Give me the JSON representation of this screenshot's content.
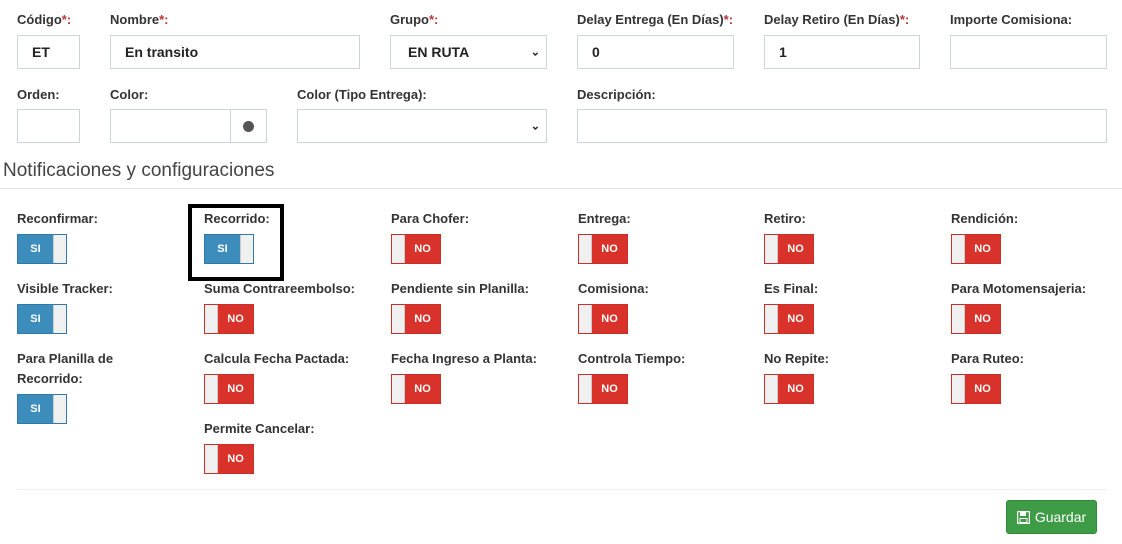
{
  "fields": [
    {
      "label": "Código",
      "required": true,
      "value": "ET"
    },
    {
      "label": "Nombre",
      "required": true,
      "value": "En transito"
    },
    {
      "label": "Grupo",
      "required": true,
      "value": "EN RUTA"
    },
    {
      "label": "Delay Entrega (En Días)",
      "required": true,
      "value": "0"
    },
    {
      "label": "Delay Retiro (En Días)",
      "required": true,
      "value": "1"
    },
    {
      "label": "Importe Comisiona:",
      "required": false,
      "value": ""
    },
    {
      "label": "Orden:",
      "value": ""
    },
    {
      "label": "Color:",
      "value": ""
    },
    {
      "label": "Color (Tipo Entrega):",
      "value": ""
    },
    {
      "label": "Descripción:",
      "value": ""
    }
  ],
  "req_suffix": "*:",
  "section_title": "Notificaciones y configuraciones",
  "on_label": "SI",
  "off_label": "NO",
  "colors": {
    "on": "#3c8dbc",
    "off": "#d9322b",
    "save": "#3d9c45"
  },
  "toggles": [
    {
      "label": "Reconfirmar:",
      "on": true,
      "col": 0,
      "row": 0
    },
    {
      "label": "Recorrido:",
      "on": true,
      "col": 1,
      "row": 0,
      "highlighted": true
    },
    {
      "label": "Para Chofer:",
      "on": false,
      "col": 2,
      "row": 0
    },
    {
      "label": "Entrega:",
      "on": false,
      "col": 3,
      "row": 0
    },
    {
      "label": "Retiro:",
      "on": false,
      "col": 4,
      "row": 0
    },
    {
      "label": "Rendición:",
      "on": false,
      "col": 5,
      "row": 0
    },
    {
      "label": "Visible Tracker:",
      "on": true,
      "col": 0,
      "row": 1
    },
    {
      "label": "Suma Contrareembolso:",
      "on": false,
      "col": 1,
      "row": 1
    },
    {
      "label": "Pendiente sin Planilla:",
      "on": false,
      "col": 2,
      "row": 1
    },
    {
      "label": "Comisiona:",
      "on": false,
      "col": 3,
      "row": 1
    },
    {
      "label": "Es Final:",
      "on": false,
      "col": 4,
      "row": 1
    },
    {
      "label": "Para Motomensajeria:",
      "on": false,
      "col": 5,
      "row": 1
    },
    {
      "label": "Para Planilla de Recorrido:",
      "on": true,
      "col": 0,
      "row": 2,
      "wrap": true
    },
    {
      "label": "Calcula Fecha Pactada:",
      "on": false,
      "col": 1,
      "row": 2
    },
    {
      "label": "Fecha Ingreso a Planta:",
      "on": false,
      "col": 2,
      "row": 2
    },
    {
      "label": "Controla Tiempo:",
      "on": false,
      "col": 3,
      "row": 2
    },
    {
      "label": "No Repite:",
      "on": false,
      "col": 4,
      "row": 2
    },
    {
      "label": "Para Ruteo:",
      "on": false,
      "col": 5,
      "row": 2
    },
    {
      "label": "Permite Cancelar:",
      "on": false,
      "col": 1,
      "row": 3
    }
  ],
  "save_label": "Guardar",
  "icons": {
    "save": "floppy-disk-icon",
    "color": "color-dot-icon",
    "select": "chevron-down-icon"
  }
}
